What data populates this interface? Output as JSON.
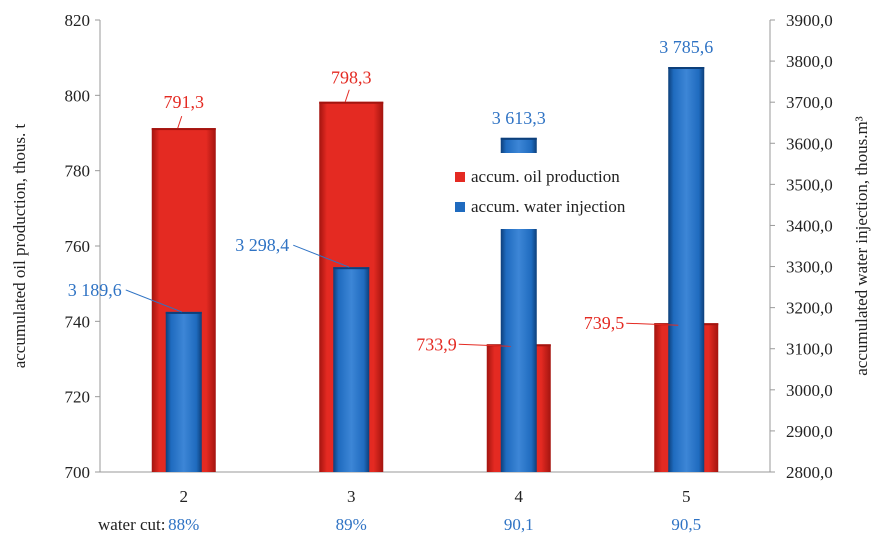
{
  "colors": {
    "oil": "#e42a22",
    "oil_dark": "#a3140f",
    "water": "#1f6bbf",
    "water_dark": "#0d3f7a",
    "oil_label": "#e42a22",
    "water_label": "#2f73c4",
    "axis": "#888888"
  },
  "water_cut": {
    "label": "water cut:",
    "values": [
      "88%",
      "89%",
      "90,1",
      "90,5"
    ]
  },
  "chart_data": {
    "type": "bar",
    "categories": [
      "2",
      "3",
      "4",
      "5"
    ],
    "xlabel": "",
    "ylabel": "accumulated oil production, thous. t",
    "ylabel_right": "accumulated water injection, thous.m³",
    "ylim": [
      700,
      820
    ],
    "ylim_right": [
      2800,
      3900
    ],
    "yticks": [
      "700",
      "720",
      "740",
      "760",
      "780",
      "800",
      "820"
    ],
    "yticks_right": [
      "2800,0",
      "2900,0",
      "3000,0",
      "3100,0",
      "3200,0",
      "3300,0",
      "3400,0",
      "3500,0",
      "3600,0",
      "3700,0",
      "3800,0",
      "3900,0"
    ],
    "grid": false,
    "legend": "center-right",
    "series": [
      {
        "name": "accum. oil production",
        "axis": "left",
        "values": [
          791.3,
          798.3,
          733.9,
          739.5
        ],
        "labels": [
          "791,3",
          "798,3",
          "733,9",
          "739,5"
        ]
      },
      {
        "name": "accum. water injection",
        "axis": "right",
        "values": [
          3189.6,
          3298.4,
          3613.3,
          3785.6
        ],
        "labels": [
          "3 189,6",
          "3 298,4",
          "3 613,3",
          "3 785,6"
        ]
      }
    ]
  }
}
